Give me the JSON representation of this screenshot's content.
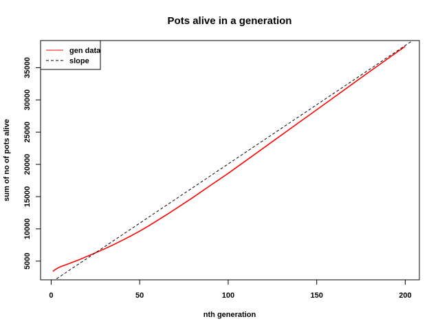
{
  "chart_data": {
    "type": "line",
    "title": "Pots alive in a generation",
    "xlabel": "nth generation",
    "ylabel": "sum of no of pots alive",
    "xlim": [
      -6,
      208
    ],
    "ylim": [
      2100,
      39200
    ],
    "x_ticks": [
      0,
      50,
      100,
      150,
      200
    ],
    "y_ticks": [
      5000,
      10000,
      15000,
      20000,
      25000,
      30000,
      35000
    ],
    "x_tick_labels": [
      "0",
      "50",
      "100",
      "150",
      "200"
    ],
    "y_tick_labels": [
      "5000",
      "10000",
      "15000",
      "20000",
      "25000",
      "30000",
      "35000"
    ],
    "legend_position": "top-left",
    "grid": false,
    "series": [
      {
        "name": "gen data",
        "color": "#ff0000",
        "style": "solid",
        "x": [
          1,
          2,
          3,
          4,
          5,
          10,
          15,
          20,
          25,
          30,
          35,
          40,
          45,
          50,
          55,
          60,
          65,
          70,
          80,
          90,
          100,
          120,
          140,
          160,
          180,
          200
        ],
        "y": [
          3400,
          3650,
          3800,
          3950,
          4100,
          4600,
          5130,
          5700,
          6280,
          6880,
          7520,
          8200,
          8900,
          9650,
          10450,
          11300,
          12150,
          13050,
          14850,
          16750,
          18600,
          22550,
          26500,
          30450,
          34400,
          38300
        ]
      },
      {
        "name": "slope",
        "color": "#000000",
        "style": "dashed",
        "x": [
          -6,
          208
        ],
        "y": [
          600,
          39900
        ]
      }
    ]
  }
}
